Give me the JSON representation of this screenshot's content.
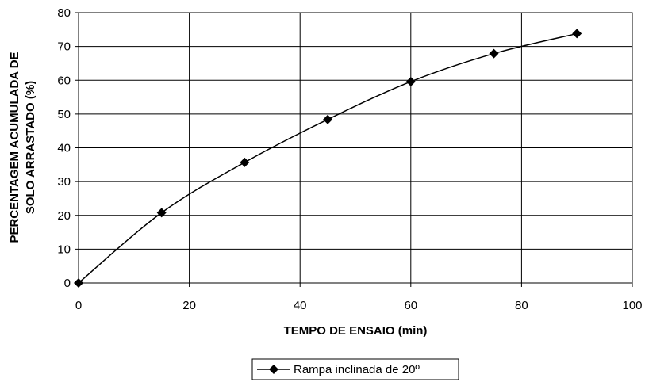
{
  "chart_data": {
    "type": "line",
    "title": "",
    "xlabel": "TEMPO DE ENSAIO (min)",
    "ylabel_lines": [
      "PERCENTAGEM ACUMULADA DE",
      "SOLO ARRASTADO (%)"
    ],
    "xlim": [
      0,
      100
    ],
    "ylim": [
      0,
      80
    ],
    "xticks": [
      0,
      20,
      40,
      60,
      80,
      100
    ],
    "yticks": [
      0,
      10,
      20,
      30,
      40,
      50,
      60,
      70,
      80
    ],
    "grid": true,
    "legend_position": "bottom",
    "series": [
      {
        "name": "Rampa inclinada de 20º",
        "color": "#000000",
        "marker": "diamond",
        "x": [
          0,
          15,
          30,
          45,
          60,
          75,
          90
        ],
        "y": [
          0,
          20.8,
          35.7,
          48.4,
          59.6,
          67.9,
          73.8
        ]
      }
    ]
  }
}
